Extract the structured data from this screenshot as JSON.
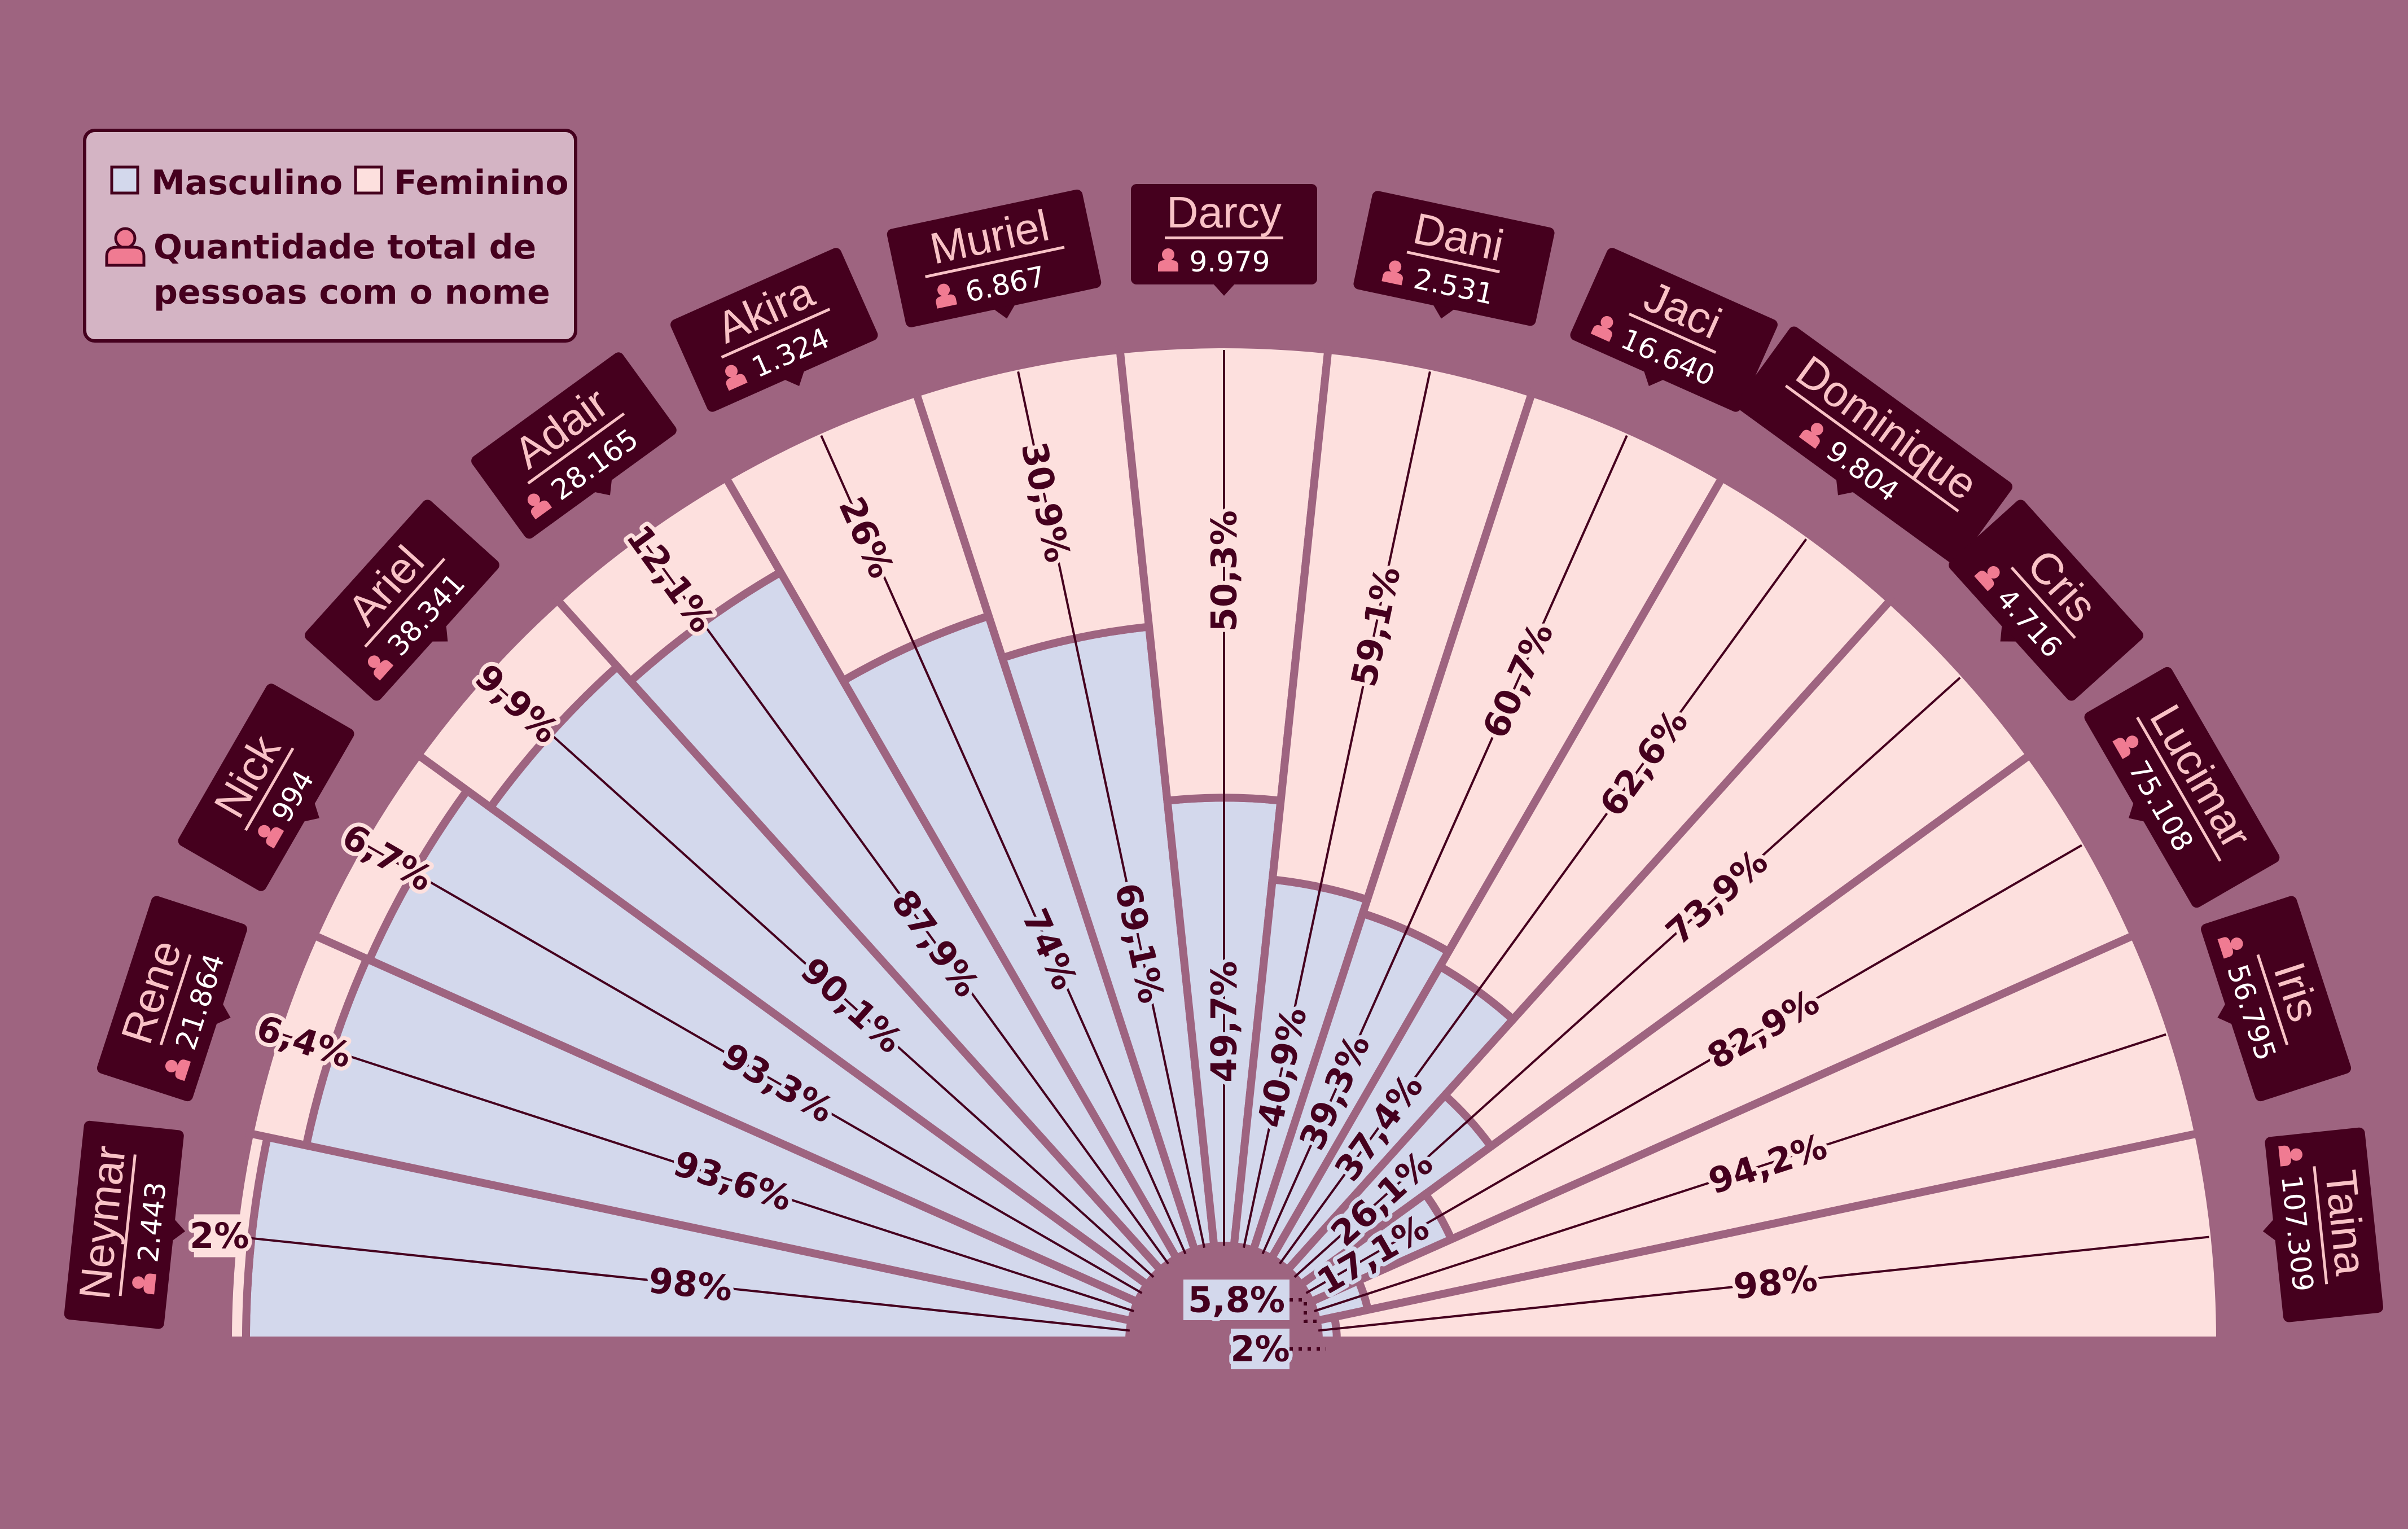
{
  "legend": {
    "male_label": "Masculino",
    "female_label": "Feminino",
    "count_label_line1": "Quantidade total de",
    "count_label_line2": "pessoas com o nome",
    "person_icon": "person-icon"
  },
  "colors": {
    "background": "#9e6480",
    "male": "#d3d8ec",
    "female": "#fde0de",
    "dark": "#45001e",
    "name_text": "#f9c2c6",
    "icon": "#f07b92",
    "legend_bg": "#d4b4c4"
  },
  "chart_data": {
    "type": "radial-stacked-bar",
    "series_names": [
      "Masculino",
      "Feminino"
    ],
    "categories": [
      {
        "name": "Neymar",
        "total": "2.443",
        "male": 98,
        "female": 2,
        "male_label": "98%",
        "female_label": "2%"
      },
      {
        "name": "Rene",
        "total": "21.864",
        "male": 93.6,
        "female": 6.4,
        "male_label": "93,6%",
        "female_label": "6,4%"
      },
      {
        "name": "Nick",
        "total": "994",
        "male": 93.3,
        "female": 6.7,
        "male_label": "93,3%",
        "female_label": "6,7%"
      },
      {
        "name": "Ariel",
        "total": "38.341",
        "male": 90.1,
        "female": 9.9,
        "male_label": "90,1%",
        "female_label": "9,9%"
      },
      {
        "name": "Adair",
        "total": "28.165",
        "male": 87.9,
        "female": 12.1,
        "male_label": "87,9%",
        "female_label": "12,1%"
      },
      {
        "name": "Akira",
        "total": "1.324",
        "male": 74,
        "female": 26,
        "male_label": "74%",
        "female_label": "26%"
      },
      {
        "name": "Muriel",
        "total": "6.867",
        "male": 69.1,
        "female": 30.9,
        "male_label": "69,1%",
        "female_label": "30,9%"
      },
      {
        "name": "Darcy",
        "total": "9.979",
        "male": 49.7,
        "female": 50.3,
        "male_label": "49,7%",
        "female_label": "50,3%"
      },
      {
        "name": "Dani",
        "total": "2.531",
        "male": 40.9,
        "female": 59.1,
        "male_label": "40,9%",
        "female_label": "59,1%"
      },
      {
        "name": "Jaci",
        "total": "16.640",
        "male": 39.3,
        "female": 60.7,
        "male_label": "39,3%",
        "female_label": "60,7%"
      },
      {
        "name": "Dominique",
        "total": "9.804",
        "male": 37.4,
        "female": 62.6,
        "male_label": "37,4%",
        "female_label": "62,6%"
      },
      {
        "name": "Cris",
        "total": "4.716",
        "male": 26.1,
        "female": 73.9,
        "male_label": "26,1%",
        "female_label": "73,9%"
      },
      {
        "name": "Lucimar",
        "total": "75.108",
        "male": 17.1,
        "female": 82.9,
        "male_label": "17,1%",
        "female_label": "82,9%"
      },
      {
        "name": "Iris",
        "total": "56.795",
        "male": 5.8,
        "female": 94.2,
        "male_label": "5,8%",
        "female_label": "94,2%"
      },
      {
        "name": "Taina",
        "total": "107.309",
        "male": 2,
        "female": 98,
        "male_label": "2%",
        "female_label": "98%"
      }
    ]
  }
}
